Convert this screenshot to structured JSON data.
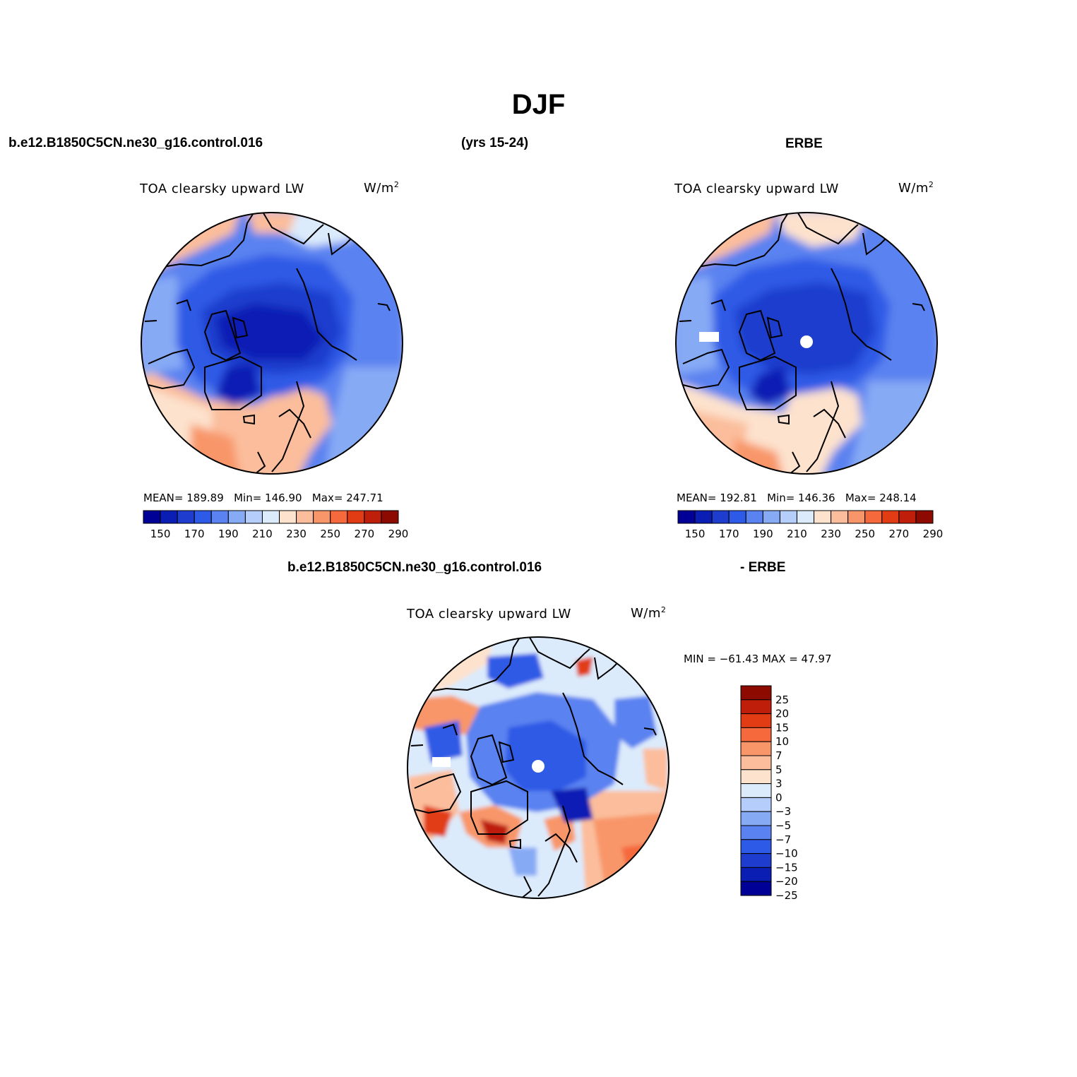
{
  "figure": {
    "title": "DJF",
    "case_name": "b.e12.B1850C5CN.ne30_g16.control.016",
    "years": "(yrs 15-24)",
    "obs_name": "ERBE",
    "diff_case_name": "b.e12.B1850C5CN.ne30_g16.control.016",
    "diff_obs_name": "- ERBE"
  },
  "panels": {
    "model": {
      "variable": "TOA clearsky upward LW",
      "units": "W/m",
      "units_exp": "2",
      "stats": {
        "mean_label": "MEAN=",
        "mean": "189.89",
        "min_label": "Min=",
        "min": "146.90",
        "max_label": "Max=",
        "max": "247.71"
      }
    },
    "obs": {
      "variable": "TOA clearsky upward LW",
      "units": "W/m",
      "units_exp": "2",
      "stats": {
        "mean_label": "MEAN=",
        "mean": "192.81",
        "min_label": "Min=",
        "min": "146.36",
        "max_label": "Max=",
        "max": "248.14"
      }
    },
    "diff": {
      "variable": "TOA clearsky upward LW",
      "units": "W/m",
      "units_exp": "2",
      "minmax": "MIN = −61.43 MAX =  47.97"
    }
  },
  "colorbar_abs": {
    "colors": [
      "#000096",
      "#0a1eb4",
      "#1e3ccd",
      "#2d5ae6",
      "#5a82f0",
      "#87aaf5",
      "#b4cdfa",
      "#dcebfc",
      "#fde2cd",
      "#fbbd9b",
      "#f89669",
      "#f5693c",
      "#e13c14",
      "#be1e0a",
      "#8c0a00"
    ],
    "labels": [
      "150",
      "170",
      "190",
      "210",
      "230",
      "250",
      "270",
      "290"
    ]
  },
  "colorbar_diff": {
    "colors": [
      "#000096",
      "#0a1eb4",
      "#1e3ccd",
      "#2d5ae6",
      "#5a82f0",
      "#87aaf5",
      "#b4cdfa",
      "#dcebfc",
      "#fde2cd",
      "#fbbd9b",
      "#f89669",
      "#f5693c",
      "#e13c14",
      "#be1e0a",
      "#8c0a00"
    ],
    "labels": [
      "25",
      "20",
      "15",
      "10",
      "7",
      "5",
      "3",
      "0",
      "−3",
      "−5",
      "−7",
      "−10",
      "−15",
      "−20",
      "−25"
    ]
  },
  "map_colors": {
    "deep_blue": "#0a1eb4",
    "mid_blue": "#2d5ae6",
    "light_blue": "#87aaf5",
    "pale_blue": "#dcebfc",
    "pale_orange": "#fde2cd",
    "light_orange": "#fbbd9b",
    "orange": "#f89669",
    "red": "#e13c14",
    "dark_red": "#8c0a00",
    "coast": "#000000"
  }
}
